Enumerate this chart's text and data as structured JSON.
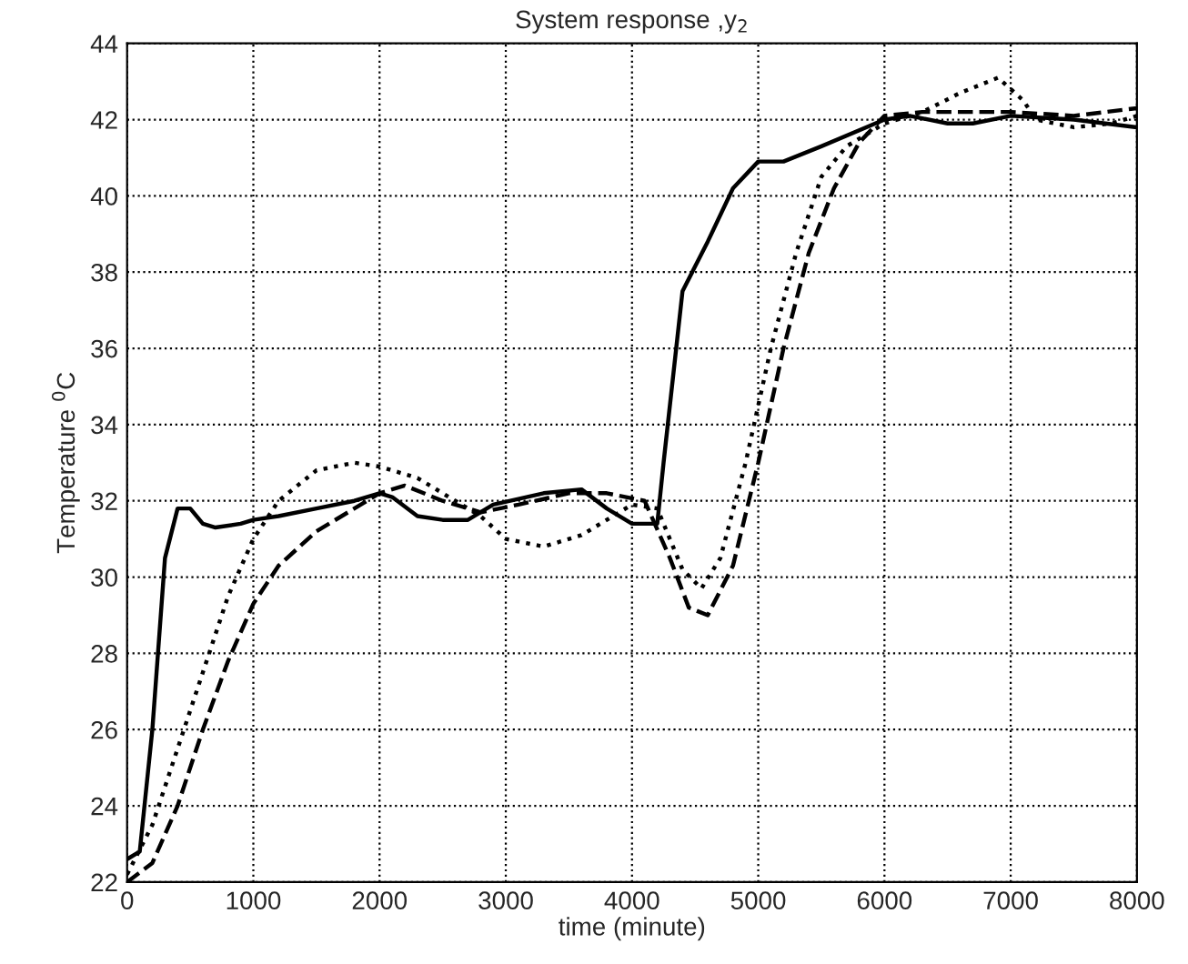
{
  "chart_data": {
    "type": "line",
    "title": "System response ,y$_{2}$",
    "xlabel": "time (minute)",
    "ylabel": "Temperature $^{0}$C",
    "xlim": [
      0,
      8000
    ],
    "ylim": [
      22,
      44
    ],
    "xticks": [
      0,
      1000,
      2000,
      3000,
      4000,
      5000,
      6000,
      7000,
      8000
    ],
    "yticks": [
      22,
      24,
      26,
      28,
      30,
      32,
      34,
      36,
      38,
      40,
      42,
      44
    ],
    "grid": true,
    "legend": false,
    "series": [
      {
        "color": "#000000",
        "line_style": "solid",
        "x": [
          0,
          100,
          200,
          300,
          400,
          500,
          600,
          700,
          900,
          1000,
          1200,
          1500,
          1800,
          2000,
          2100,
          2300,
          2500,
          2700,
          2900,
          3300,
          3600,
          3800,
          4000,
          4200,
          4250,
          4400,
          4600,
          4800,
          5000,
          5200,
          5500,
          6000,
          6200,
          6500,
          6700,
          7000,
          7500,
          8000
        ],
        "values": [
          22.6,
          22.8,
          26,
          30.5,
          31.8,
          31.8,
          31.4,
          31.3,
          31.4,
          31.5,
          31.6,
          31.8,
          32.0,
          32.2,
          32.1,
          31.6,
          31.5,
          31.5,
          31.9,
          32.2,
          32.3,
          31.8,
          31.4,
          31.4,
          33,
          37.5,
          38.8,
          40.2,
          40.9,
          40.9,
          41.3,
          42.0,
          42.1,
          41.9,
          41.9,
          42.1,
          42.0,
          41.8
        ]
      },
      {
        "color": "#000000",
        "line_style": "dotted",
        "x": [
          0,
          200,
          400,
          600,
          800,
          1000,
          1200,
          1500,
          1800,
          2000,
          2300,
          2600,
          2800,
          3000,
          3300,
          3600,
          4000,
          4200,
          4400,
          4550,
          4700,
          4900,
          5100,
          5300,
          5500,
          5700,
          6000,
          6300,
          6600,
          6900,
          7100,
          7200,
          7500,
          7800,
          8000
        ],
        "values": [
          22.2,
          23.5,
          25.5,
          27.5,
          29.5,
          31.0,
          32.0,
          32.8,
          33.0,
          32.9,
          32.6,
          32.0,
          31.6,
          31.0,
          30.8,
          31.1,
          31.9,
          31.8,
          30.2,
          29.7,
          30.5,
          33,
          36,
          38.5,
          40.5,
          41.3,
          41.9,
          42.2,
          42.7,
          43.1,
          42.5,
          42.0,
          41.8,
          41.9,
          42.1
        ]
      },
      {
        "color": "#000000",
        "line_style": "dashed",
        "x": [
          0,
          200,
          400,
          600,
          800,
          1000,
          1200,
          1500,
          1800,
          2000,
          2200,
          2500,
          2800,
          3100,
          3500,
          3800,
          4100,
          4300,
          4450,
          4600,
          4800,
          5000,
          5200,
          5400,
          5600,
          5800,
          6000,
          6300,
          6700,
          7000,
          7500,
          8000
        ],
        "values": [
          22.0,
          22.5,
          24,
          26,
          27.8,
          29.3,
          30.3,
          31.2,
          31.8,
          32.2,
          32.4,
          32.0,
          31.7,
          31.9,
          32.2,
          32.2,
          32.0,
          30.5,
          29.2,
          29.0,
          30.3,
          33,
          36,
          38.5,
          40.2,
          41.4,
          42.1,
          42.2,
          42.2,
          42.2,
          42.1,
          42.3
        ]
      }
    ]
  }
}
